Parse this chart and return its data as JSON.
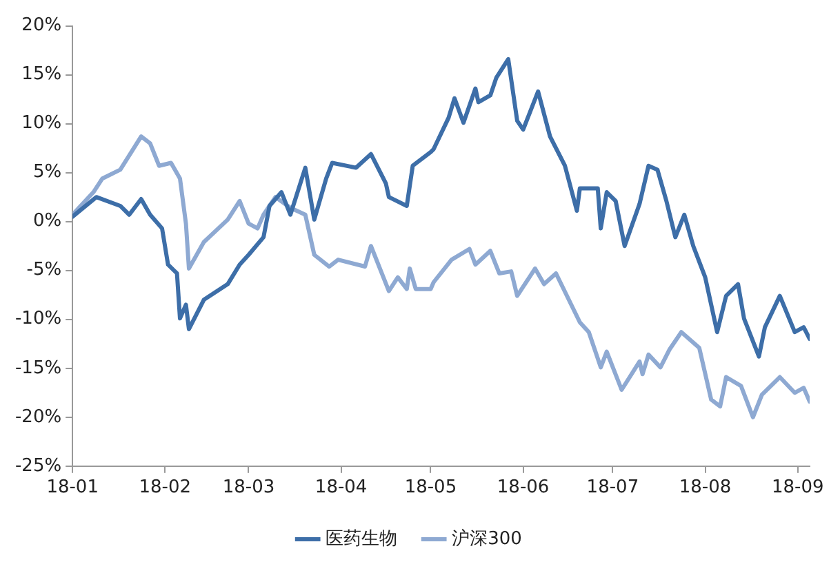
{
  "chart_data": {
    "type": "line",
    "series": [
      {
        "name": "医药生物",
        "color": "#3d6ea8",
        "x": [
          "--01-01",
          "--01-09",
          "--01-17",
          "--01-20",
          "--01-24",
          "--01-27",
          "--01-31",
          "--02-02",
          "--02-05",
          "--02-06",
          "--02-08",
          "--02-09",
          "--02-14",
          "--02-22",
          "--02-26",
          "--03-01",
          "--03-06",
          "--03-08",
          "--03-12",
          "--03-15",
          "--03-20",
          "--03-23",
          "--03-27",
          "--03-29",
          "--04-06",
          "--04-11",
          "--04-16",
          "--04-17",
          "--04-23",
          "--04-25",
          "--05-01",
          "--05-02",
          "--05-07",
          "--05-09",
          "--05-12",
          "--05-16",
          "--05-17",
          "--05-21",
          "--05-23",
          "--05-27",
          "--05-30",
          "--06-01",
          "--06-06",
          "--06-10",
          "--06-15",
          "--06-19",
          "--06-20",
          "--06-26",
          "--06-27",
          "--06-29",
          "--07-02",
          "--07-05",
          "--07-10",
          "--07-13",
          "--07-16",
          "--07-19",
          "--07-22",
          "--07-25",
          "--07-28",
          "--08-01",
          "--08-05",
          "--08-08",
          "--08-12",
          "--08-14",
          "--08-19",
          "--08-21",
          "--08-26",
          "--08-31",
          "--09-03",
          "--09-05"
        ],
        "values": [
          0.5,
          2.5,
          1.6,
          0.7,
          2.3,
          0.7,
          -0.7,
          -4.4,
          -5.3,
          -9.9,
          -8.5,
          -11,
          -8,
          -6.4,
          -4.4,
          -3.4,
          -1.6,
          1.6,
          3,
          0.7,
          5.5,
          0.2,
          4.4,
          6,
          5.5,
          6.9,
          3.9,
          2.5,
          1.6,
          5.7,
          7.1,
          7.4,
          10.6,
          12.6,
          10.1,
          13.6,
          12.2,
          12.9,
          14.7,
          16.6,
          10.3,
          9.4,
          13.3,
          8.7,
          5.7,
          1.1,
          3.4,
          3.4,
          -0.7,
          3,
          2.1,
          -2.5,
          1.8,
          5.7,
          5.3,
          2.1,
          -1.6,
          0.7,
          -2.5,
          -5.7,
          -11.3,
          -7.6,
          -6.4,
          -9.9,
          -13.8,
          -10.8,
          -7.6,
          -11.3,
          -10.8,
          -12
        ]
      },
      {
        "name": "沪深300",
        "color": "#8ea9d2",
        "x": [
          "--01-01",
          "--01-08",
          "--01-11",
          "--01-17",
          "--01-24",
          "--01-27",
          "--01-30",
          "--02-03",
          "--02-06",
          "--02-08",
          "--02-09",
          "--02-14",
          "--02-22",
          "--02-26",
          "--03-01",
          "--03-04",
          "--03-06",
          "--03-10",
          "--03-15",
          "--03-20",
          "--03-23",
          "--03-28",
          "--03-31",
          "--04-09",
          "--04-11",
          "--04-17",
          "--04-20",
          "--04-23",
          "--04-24",
          "--04-26",
          "--05-01",
          "--05-02",
          "--05-08",
          "--05-14",
          "--05-16",
          "--05-21",
          "--05-24",
          "--05-28",
          "--05-30",
          "--06-05",
          "--06-08",
          "--06-12",
          "--06-20",
          "--06-23",
          "--06-27",
          "--06-29",
          "--07-04",
          "--07-10",
          "--07-11",
          "--07-13",
          "--07-17",
          "--07-20",
          "--07-24",
          "--07-30",
          "--08-03",
          "--08-06",
          "--08-08",
          "--08-13",
          "--08-17",
          "--08-20",
          "--08-26",
          "--08-31",
          "--09-03",
          "--09-05"
        ],
        "values": [
          0.7,
          3,
          4.4,
          5.3,
          8.7,
          8,
          5.7,
          6,
          4.4,
          -0.2,
          -4.8,
          -2.1,
          0.2,
          2.1,
          -0.2,
          -0.7,
          0.7,
          2.5,
          1.4,
          0.7,
          -3.4,
          -4.6,
          -3.9,
          -4.6,
          -2.5,
          -7.1,
          -5.7,
          -6.9,
          -4.8,
          -6.9,
          -6.9,
          -6.2,
          -3.9,
          -2.8,
          -4.4,
          -3,
          -5.3,
          -5.1,
          -7.6,
          -4.8,
          -6.4,
          -5.3,
          -10.3,
          -11.3,
          -14.9,
          -13.3,
          -17.2,
          -14.3,
          -15.6,
          -13.6,
          -14.9,
          -13.1,
          -11.3,
          -12.9,
          -18.2,
          -18.9,
          -15.9,
          -16.8,
          -20,
          -17.7,
          -15.9,
          -17.5,
          -17,
          -18.4
        ]
      }
    ],
    "xlim": [
      "--01-01",
      "--09-05"
    ],
    "xticks": [
      {
        "value": "--01-01",
        "label": "18-01"
      },
      {
        "value": "--02-01",
        "label": "18-02"
      },
      {
        "value": "--03-01",
        "label": "18-03"
      },
      {
        "value": "--04-01",
        "label": "18-04"
      },
      {
        "value": "--05-01",
        "label": "18-05"
      },
      {
        "value": "--06-01",
        "label": "18-06"
      },
      {
        "value": "--07-01",
        "label": "18-07"
      },
      {
        "value": "--08-01",
        "label": "18-08"
      },
      {
        "value": "--09-01",
        "label": "18-09"
      }
    ],
    "ylim": [
      -25,
      20
    ],
    "yticks": [
      {
        "value": -25,
        "label": "-25%"
      },
      {
        "value": -20,
        "label": "-20%"
      },
      {
        "value": -15,
        "label": "-15%"
      },
      {
        "value": -10,
        "label": "-10%"
      },
      {
        "value": -5,
        "label": "-5%"
      },
      {
        "value": 0,
        "label": "0%"
      },
      {
        "value": 5,
        "label": "5%"
      },
      {
        "value": 10,
        "label": "10%"
      },
      {
        "value": 15,
        "label": "15%"
      },
      {
        "value": 20,
        "label": "20%"
      }
    ],
    "legend": "bottom",
    "marker": "none",
    "line_style": "solid"
  }
}
